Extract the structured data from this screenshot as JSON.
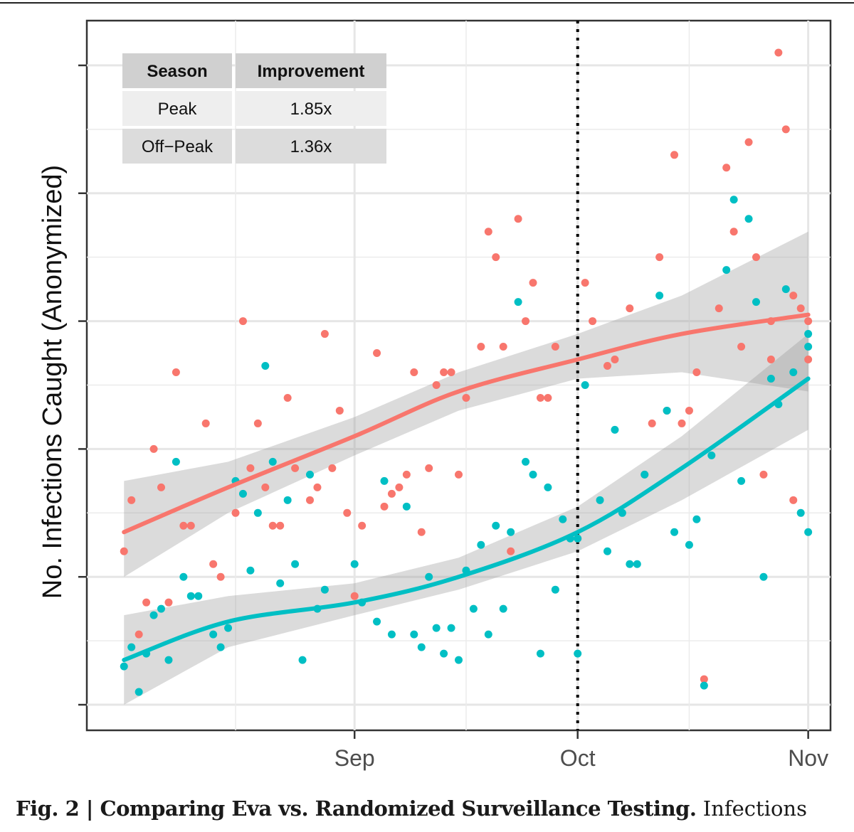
{
  "caption": {
    "bold": "Fig. 2 | Comparing Eva vs. Randomized Surveillance Testing.",
    "text": "Infections"
  },
  "chart_data": {
    "type": "scatter",
    "title": "",
    "xlabel": "",
    "ylabel": "No. Infections Caught (Anonymized)",
    "x_axis": {
      "type": "date",
      "ticks": [
        "Sep",
        "Oct",
        "Nov"
      ],
      "range": [
        "2020-08-02",
        "2020-11-01"
      ]
    },
    "y_axis": {
      "tick_labels_shown": false,
      "range": [
        0,
        100
      ]
    },
    "grid": true,
    "vline": {
      "x": "2020-10-01",
      "style": "dotted"
    },
    "table": {
      "headers": [
        "Season",
        "Improvement"
      ],
      "rows": [
        [
          "Peak",
          "1.85x"
        ],
        [
          "Off−Peak",
          "1.36x"
        ]
      ]
    },
    "series": [
      {
        "color": "#F8766D",
        "points": [
          [
            "2020-08-01",
            24
          ],
          [
            "2020-08-02",
            32
          ],
          [
            "2020-08-03",
            11
          ],
          [
            "2020-08-04",
            16
          ],
          [
            "2020-08-05",
            40
          ],
          [
            "2020-08-06",
            34
          ],
          [
            "2020-08-07",
            16
          ],
          [
            "2020-08-08",
            52
          ],
          [
            "2020-08-09",
            28
          ],
          [
            "2020-08-10",
            28
          ],
          [
            "2020-08-12",
            44
          ],
          [
            "2020-08-13",
            22
          ],
          [
            "2020-08-14",
            20
          ],
          [
            "2020-08-16",
            30
          ],
          [
            "2020-08-17",
            60
          ],
          [
            "2020-08-18",
            37
          ],
          [
            "2020-08-19",
            44
          ],
          [
            "2020-08-20",
            34
          ],
          [
            "2020-08-21",
            28
          ],
          [
            "2020-08-22",
            28
          ],
          [
            "2020-08-23",
            48
          ],
          [
            "2020-08-24",
            37
          ],
          [
            "2020-08-26",
            32
          ],
          [
            "2020-08-27",
            34
          ],
          [
            "2020-08-28",
            58
          ],
          [
            "2020-08-29",
            37
          ],
          [
            "2020-08-30",
            46
          ],
          [
            "2020-08-31",
            30
          ],
          [
            "2020-09-01",
            17
          ],
          [
            "2020-09-02",
            28
          ],
          [
            "2020-09-04",
            55
          ],
          [
            "2020-09-05",
            31
          ],
          [
            "2020-09-06",
            33
          ],
          [
            "2020-09-07",
            34
          ],
          [
            "2020-09-08",
            36
          ],
          [
            "2020-09-09",
            52
          ],
          [
            "2020-09-10",
            27
          ],
          [
            "2020-09-11",
            37
          ],
          [
            "2020-09-12",
            50
          ],
          [
            "2020-09-13",
            52
          ],
          [
            "2020-09-14",
            52
          ],
          [
            "2020-09-15",
            36
          ],
          [
            "2020-09-16",
            48
          ],
          [
            "2020-09-18",
            56
          ],
          [
            "2020-09-19",
            74
          ],
          [
            "2020-09-20",
            70
          ],
          [
            "2020-09-21",
            56
          ],
          [
            "2020-09-22",
            24
          ],
          [
            "2020-09-23",
            76
          ],
          [
            "2020-09-24",
            60
          ],
          [
            "2020-09-25",
            66
          ],
          [
            "2020-09-26",
            48
          ],
          [
            "2020-09-27",
            48
          ],
          [
            "2020-09-28",
            56
          ],
          [
            "2020-10-01",
            26
          ],
          [
            "2020-10-02",
            66
          ],
          [
            "2020-10-03",
            60
          ],
          [
            "2020-10-05",
            53
          ],
          [
            "2020-10-06",
            54
          ],
          [
            "2020-10-08",
            62
          ],
          [
            "2020-10-10",
            36
          ],
          [
            "2020-10-11",
            44
          ],
          [
            "2020-10-12",
            70
          ],
          [
            "2020-10-13",
            46
          ],
          [
            "2020-10-14",
            86
          ],
          [
            "2020-10-15",
            44
          ],
          [
            "2020-10-16",
            46
          ],
          [
            "2020-10-17",
            52
          ],
          [
            "2020-10-18",
            4
          ],
          [
            "2020-10-20",
            62
          ],
          [
            "2020-10-21",
            84
          ],
          [
            "2020-10-22",
            74
          ],
          [
            "2020-10-23",
            56
          ],
          [
            "2020-10-24",
            88
          ],
          [
            "2020-10-25",
            70
          ],
          [
            "2020-10-26",
            36
          ],
          [
            "2020-10-27",
            54
          ],
          [
            "2020-10-28",
            102
          ],
          [
            "2020-10-29",
            90
          ],
          [
            "2020-10-30",
            64
          ],
          [
            "2020-10-31",
            62
          ],
          [
            "2020-11-01",
            60
          ],
          [
            "2020-10-27",
            60
          ],
          [
            "2020-10-30",
            32
          ],
          [
            "2020-11-01",
            54
          ]
        ]
      },
      {
        "color": "#00BFC4",
        "points": [
          [
            "2020-08-01",
            6
          ],
          [
            "2020-08-02",
            9
          ],
          [
            "2020-08-03",
            2
          ],
          [
            "2020-08-04",
            8
          ],
          [
            "2020-08-05",
            14
          ],
          [
            "2020-08-06",
            15
          ],
          [
            "2020-08-07",
            7
          ],
          [
            "2020-08-08",
            38
          ],
          [
            "2020-08-09",
            20
          ],
          [
            "2020-08-10",
            17
          ],
          [
            "2020-08-11",
            17
          ],
          [
            "2020-08-13",
            11
          ],
          [
            "2020-08-14",
            9
          ],
          [
            "2020-08-15",
            12
          ],
          [
            "2020-08-16",
            35
          ],
          [
            "2020-08-17",
            33
          ],
          [
            "2020-08-18",
            21
          ],
          [
            "2020-08-19",
            30
          ],
          [
            "2020-08-20",
            53
          ],
          [
            "2020-08-21",
            38
          ],
          [
            "2020-08-22",
            19
          ],
          [
            "2020-08-23",
            32
          ],
          [
            "2020-08-24",
            22
          ],
          [
            "2020-08-25",
            7
          ],
          [
            "2020-08-26",
            36
          ],
          [
            "2020-08-27",
            15
          ],
          [
            "2020-08-28",
            18
          ],
          [
            "2020-09-01",
            22
          ],
          [
            "2020-09-02",
            16
          ],
          [
            "2020-09-04",
            13
          ],
          [
            "2020-09-05",
            35
          ],
          [
            "2020-09-06",
            11
          ],
          [
            "2020-09-08",
            31
          ],
          [
            "2020-09-09",
            11
          ],
          [
            "2020-09-10",
            9
          ],
          [
            "2020-09-11",
            20
          ],
          [
            "2020-09-12",
            12
          ],
          [
            "2020-09-13",
            8
          ],
          [
            "2020-09-14",
            12
          ],
          [
            "2020-09-15",
            7
          ],
          [
            "2020-09-16",
            21
          ],
          [
            "2020-09-17",
            15
          ],
          [
            "2020-09-18",
            25
          ],
          [
            "2020-09-19",
            11
          ],
          [
            "2020-09-20",
            28
          ],
          [
            "2020-09-21",
            15
          ],
          [
            "2020-09-22",
            27
          ],
          [
            "2020-09-23",
            63
          ],
          [
            "2020-09-24",
            38
          ],
          [
            "2020-09-25",
            36
          ],
          [
            "2020-09-26",
            8
          ],
          [
            "2020-09-27",
            34
          ],
          [
            "2020-09-28",
            18
          ],
          [
            "2020-09-29",
            29
          ],
          [
            "2020-09-30",
            26
          ],
          [
            "2020-10-01",
            26
          ],
          [
            "2020-10-01",
            8
          ],
          [
            "2020-10-02",
            50
          ],
          [
            "2020-10-04",
            32
          ],
          [
            "2020-10-05",
            24
          ],
          [
            "2020-10-06",
            43
          ],
          [
            "2020-10-07",
            30
          ],
          [
            "2020-10-08",
            22
          ],
          [
            "2020-10-09",
            22
          ],
          [
            "2020-10-10",
            36
          ],
          [
            "2020-10-12",
            64
          ],
          [
            "2020-10-13",
            46
          ],
          [
            "2020-10-14",
            27
          ],
          [
            "2020-10-16",
            25
          ],
          [
            "2020-10-17",
            29
          ],
          [
            "2020-10-18",
            3
          ],
          [
            "2020-10-19",
            39
          ],
          [
            "2020-10-21",
            68
          ],
          [
            "2020-10-22",
            79
          ],
          [
            "2020-10-23",
            35
          ],
          [
            "2020-10-24",
            76
          ],
          [
            "2020-10-25",
            63
          ],
          [
            "2020-10-26",
            20
          ],
          [
            "2020-10-27",
            51
          ],
          [
            "2020-10-28",
            47
          ],
          [
            "2020-10-29",
            65
          ],
          [
            "2020-10-30",
            52
          ],
          [
            "2020-10-31",
            30
          ],
          [
            "2020-11-01",
            27
          ],
          [
            "2020-11-01",
            56
          ],
          [
            "2020-11-01",
            58
          ]
        ]
      }
    ],
    "smooth_fits": [
      {
        "color": "#F8766D",
        "x": [
          "2020-08-01",
          "2020-08-15",
          "2020-09-01",
          "2020-09-15",
          "2020-10-01",
          "2020-10-15",
          "2020-11-01"
        ],
        "y": [
          27,
          34,
          42,
          49,
          54,
          58,
          61
        ],
        "band_low": [
          20,
          30,
          39,
          46,
          51,
          52,
          49
        ],
        "band_high": [
          35,
          38,
          45,
          52,
          58,
          64,
          74
        ]
      },
      {
        "color": "#00BFC4",
        "x": [
          "2020-08-01",
          "2020-08-15",
          "2020-09-01",
          "2020-09-15",
          "2020-10-01",
          "2020-10-15",
          "2020-11-01"
        ],
        "y": [
          7,
          13,
          16,
          20,
          27,
          37,
          51
        ],
        "band_low": [
          0,
          9,
          14,
          18,
          24,
          32,
          43
        ],
        "band_high": [
          14,
          17,
          19,
          23,
          31,
          42,
          58
        ]
      }
    ]
  }
}
